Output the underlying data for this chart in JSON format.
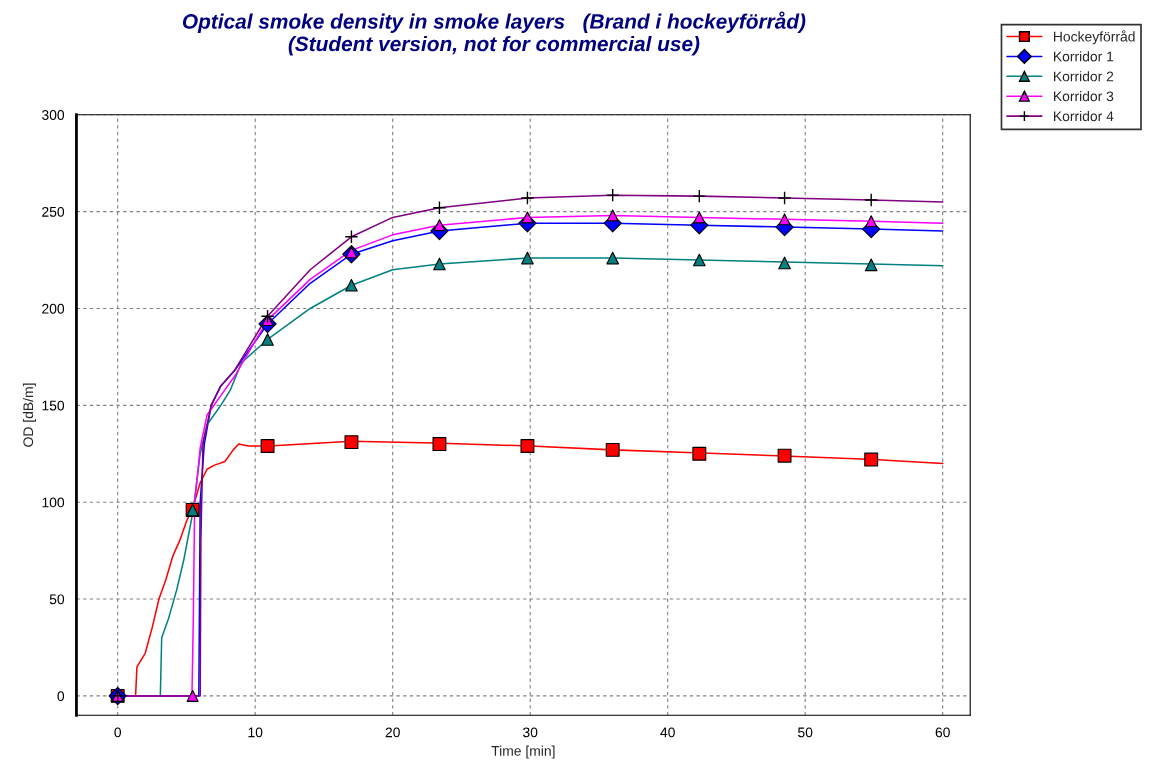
{
  "chart_data": {
    "type": "line",
    "title": "Optical smoke density in smoke layers   (Brand i hockeyförråd)\n(Student version, not for commercial use)",
    "xlabel": "Time [min]",
    "ylabel": "OD [dB/m]",
    "xlim": [
      -3,
      62
    ],
    "ylim": [
      -10,
      300
    ],
    "xticks": [
      0,
      10,
      20,
      30,
      40,
      50,
      60
    ],
    "yticks": [
      0,
      50,
      100,
      150,
      200,
      250,
      300
    ],
    "grid": true,
    "legend": "top right",
    "series": [
      {
        "name": "Hockeyförråd",
        "color": "#ff0000",
        "x": [
          0,
          1.3,
          1.4,
          2,
          2.5,
          3,
          3.5,
          4,
          4.5,
          5,
          5.5,
          6,
          6.5,
          7,
          7.8,
          8.4,
          8.8,
          9.5,
          11,
          17,
          23,
          30,
          36,
          42,
          48,
          55,
          60
        ],
        "values": [
          0,
          0,
          15,
          22,
          35,
          50,
          60,
          72,
          80,
          90,
          98,
          110,
          117,
          119,
          121,
          127,
          130,
          129,
          129,
          131.5,
          130.5,
          129,
          127,
          125.5,
          124,
          122,
          120
        ]
      },
      {
        "name": "Korridor 1",
        "color": "#0000ff",
        "x": [
          0,
          5.9,
          6.0,
          6.3,
          6.8,
          7.5,
          8.5,
          10.9,
          14,
          17,
          20,
          23.4,
          29.8,
          36,
          42.3,
          48.5,
          54.8,
          60
        ],
        "values": [
          0,
          0,
          100,
          130,
          150,
          160,
          168,
          192,
          213,
          228,
          235,
          240,
          244,
          244,
          243,
          242,
          241,
          240
        ]
      },
      {
        "name": "Korridor 2",
        "color": "#008080",
        "x": [
          0,
          3.1,
          3.2,
          3.7,
          4.3,
          4.8,
          5.5,
          6,
          6.5,
          7.5,
          8.2,
          9,
          10.9,
          14,
          17,
          20,
          23.4,
          29.8,
          36,
          42.3,
          48.5,
          54.8,
          60
        ],
        "values": [
          0,
          0,
          30,
          40,
          55,
          70,
          96,
          125,
          140,
          150,
          158,
          172,
          184,
          200,
          212,
          220,
          223,
          226,
          226,
          225,
          224,
          223,
          222
        ]
      },
      {
        "name": "Korridor 3",
        "color": "#ff00ff",
        "x": [
          0,
          5.4,
          5.5,
          5.6,
          6,
          6.5,
          7.5,
          8.5,
          10.9,
          14,
          17,
          20,
          23.4,
          29.8,
          36,
          42.3,
          48.5,
          54.8,
          60
        ],
        "values": [
          0,
          0,
          40,
          100,
          128,
          145,
          155,
          165,
          194,
          215,
          230,
          238,
          243,
          247,
          248,
          247,
          246,
          245,
          244
        ]
      },
      {
        "name": "Korridor 4",
        "color": "#800080",
        "x": [
          0,
          6.0,
          6.05,
          6.2,
          6.8,
          7.5,
          8.5,
          10.9,
          14,
          17,
          20,
          23.4,
          29.8,
          36,
          42.3,
          48.5,
          54.8,
          60
        ],
        "values": [
          0,
          0,
          80,
          130,
          150,
          160,
          168,
          196,
          220,
          237,
          247,
          252,
          257,
          258.5,
          258,
          257,
          256,
          255
        ]
      },
      {
        "type": "scatter",
        "color": "#ff0000",
        "marker": "square",
        "x": [
          0,
          5.45,
          10.9,
          17,
          23.4,
          29.8,
          36,
          42.3,
          48.5,
          54.8
        ],
        "values": [
          0,
          96,
          129,
          131,
          130,
          129,
          127,
          125,
          124,
          122
        ]
      },
      {
        "type": "scatter",
        "color": "#0000ff",
        "marker": "diamond",
        "x": [
          0,
          10.9,
          17,
          23.4,
          29.8,
          36,
          42.3,
          48.5,
          54.8
        ],
        "values": [
          0,
          192,
          228,
          240,
          244,
          244,
          243,
          242,
          241
        ]
      },
      {
        "type": "scatter",
        "color": "#008080",
        "marker": "triangle",
        "x": [
          0,
          5.45,
          10.9,
          17,
          23.4,
          29.8,
          36,
          42.3,
          48.5,
          54.8
        ],
        "values": [
          0,
          96,
          184,
          212,
          223,
          226,
          226,
          225,
          223.5,
          222.5
        ]
      },
      {
        "type": "scatter",
        "color": "#ff00ff",
        "marker": "triangle",
        "x": [
          0,
          5.45,
          10.9,
          17,
          23.4,
          29.8,
          36,
          42.3,
          48.5,
          54.8
        ],
        "values": [
          0,
          0,
          194,
          229,
          243,
          247,
          248,
          247,
          246,
          245
        ]
      },
      {
        "type": "scatter",
        "color": "#000000",
        "marker": "cross",
        "x": [
          0,
          10.9,
          17,
          23.4,
          29.8,
          36,
          42.3,
          48.5,
          54.8
        ],
        "values": [
          0,
          196,
          237,
          252,
          257,
          258.5,
          258,
          257,
          256
        ]
      }
    ]
  }
}
